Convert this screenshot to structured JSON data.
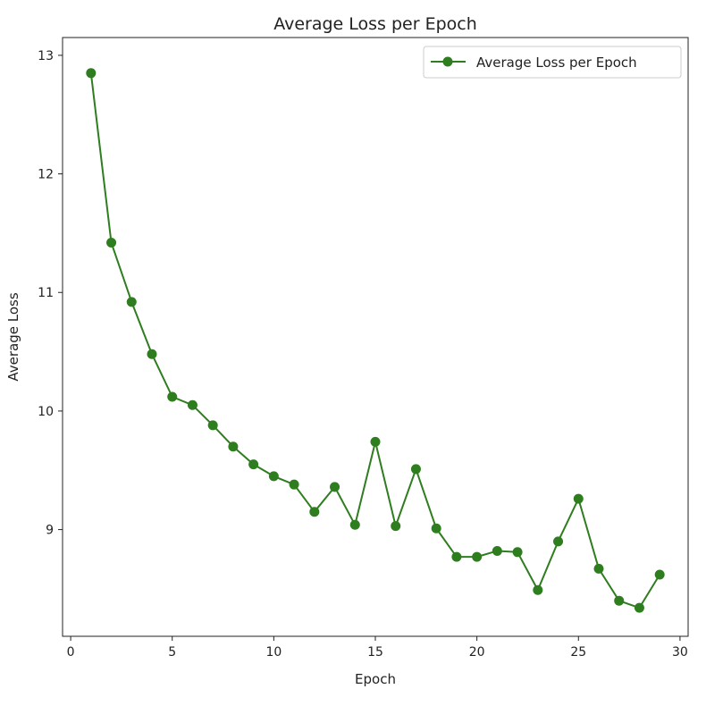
{
  "chart_data": {
    "type": "line",
    "title": "Average Loss per Epoch",
    "xlabel": "Epoch",
    "ylabel": "Average Loss",
    "xlim": [
      -0.4,
      30.4
    ],
    "ylim": [
      8.1,
      13.15
    ],
    "xticks": [
      0,
      5,
      10,
      15,
      20,
      25,
      30
    ],
    "yticks": [
      9,
      10,
      11,
      12,
      13
    ],
    "grid": false,
    "legend_position": "top-right",
    "series": [
      {
        "name": "Average Loss per Epoch",
        "color": "#2e7d1f",
        "marker": "circle",
        "x": [
          1,
          2,
          3,
          4,
          5,
          6,
          7,
          8,
          9,
          10,
          11,
          12,
          13,
          14,
          15,
          16,
          17,
          18,
          19,
          20,
          21,
          22,
          23,
          24,
          25,
          26,
          27,
          28,
          29
        ],
        "y": [
          12.85,
          11.42,
          10.92,
          10.48,
          10.12,
          10.05,
          9.88,
          9.7,
          9.55,
          9.45,
          9.38,
          9.15,
          9.36,
          9.04,
          9.74,
          9.03,
          9.51,
          9.01,
          8.77,
          8.77,
          8.82,
          8.81,
          8.49,
          8.9,
          9.26,
          8.67,
          8.4,
          8.34,
          8.62
        ]
      }
    ]
  }
}
